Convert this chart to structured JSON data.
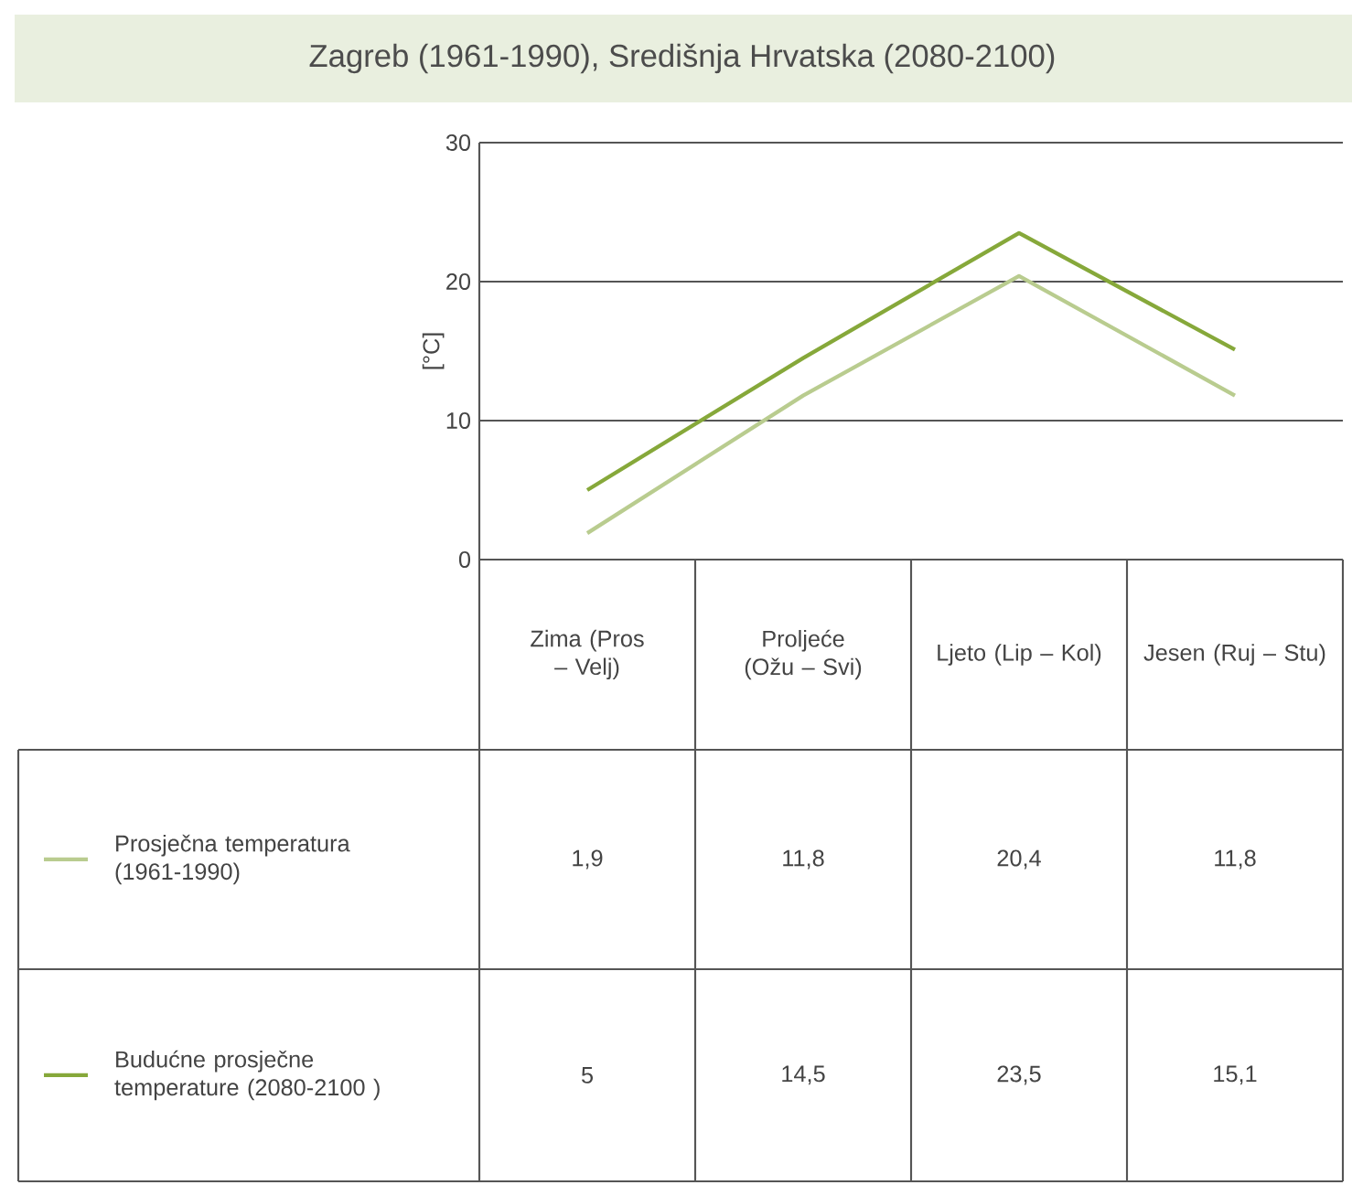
{
  "chart_data": {
    "type": "line",
    "title": "Zagreb (1961-1990), Središnja Hrvatska (2080-2100)",
    "ylabel": "[°C]",
    "categories": [
      "Zima (Pros – Velj)",
      "Proljeće (Ožu – Svi)",
      "Ljeto (Lip – Kol)",
      "Jesen (Ruj – Stu)"
    ],
    "series": [
      {
        "name": "Prosječna temperatura (1961-1990)",
        "color": "#b9cc8f",
        "values": [
          1.9,
          11.8,
          20.4,
          11.8
        ],
        "value_labels": [
          "1,9",
          "11,8",
          "20,4",
          "11,8"
        ]
      },
      {
        "name": "Budućne prosječne temperature (2080-2100 )",
        "color": "#86a83a",
        "values": [
          5,
          14.5,
          23.5,
          15.1
        ],
        "value_labels": [
          "5",
          "14,5",
          "23,5",
          "15,1"
        ]
      }
    ],
    "ylim": [
      0,
      30
    ],
    "yticks": [
      0,
      10,
      20,
      30
    ],
    "grid": "y",
    "legend": "bottom left",
    "marker": "none",
    "line_style": "solid"
  }
}
